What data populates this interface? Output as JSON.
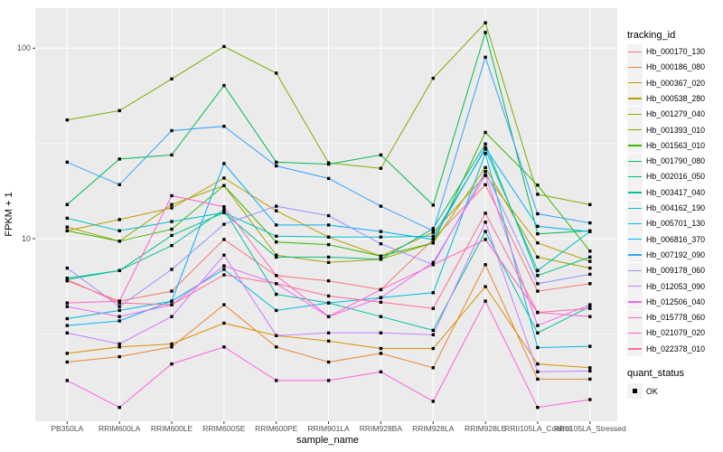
{
  "axes": {
    "y_label": "FPKM + 1",
    "x_label": "sample_name",
    "y_ticks": [
      {
        "label": "100",
        "value": 100
      },
      {
        "label": "10",
        "value": 10
      }
    ]
  },
  "legend": {
    "title": "tracking_id"
  },
  "legend_quant": {
    "title": "quant_status",
    "ok_label": "OK"
  },
  "chart_data": {
    "type": "line",
    "title": "",
    "xlabel": "sample_name",
    "ylabel": "FPKM + 1",
    "y_scale": "log10",
    "ylim": [
      1.05,
      165
    ],
    "grid": true,
    "y_major_gridlines": [
      10,
      100
    ],
    "y_minor_gridlines": [
      3.162,
      31.62
    ],
    "legend_position": "right",
    "point_shape": "black-square",
    "point_status_all": "OK",
    "categories": [
      "PB350LA",
      "RRIM600LA",
      "RRIM600LE",
      "RRIM600SE",
      "RRIM600PE",
      "RRIM901LA",
      "RRIM928BA",
      "RRIM928LA",
      "RRIM928LE",
      "RRII105LA_Control",
      "RRII105LA_Stressed"
    ],
    "series": [
      {
        "name": "Hb_000170_130",
        "color": "#F8766D",
        "values": [
          6.0,
          4.7,
          5.3,
          9.9,
          6.4,
          6.0,
          5.4,
          9.9,
          19.2,
          5.3,
          5.8
        ]
      },
      {
        "name": "Hb_000186_080",
        "color": "#EA8331",
        "values": [
          2.25,
          2.4,
          2.7,
          4.5,
          2.7,
          2.25,
          2.5,
          2.1,
          7.3,
          1.83,
          1.83
        ]
      },
      {
        "name": "Hb_000367_020",
        "color": "#D89000",
        "values": [
          2.5,
          2.7,
          2.8,
          3.6,
          3.1,
          2.9,
          2.65,
          2.65,
          5.6,
          2.2,
          2.1
        ]
      },
      {
        "name": "Hb_000538_280",
        "color": "#C09B00",
        "values": [
          11.0,
          12.6,
          14.5,
          20.8,
          14.0,
          10.2,
          8.1,
          10.8,
          21.5,
          9.5,
          7.6
        ]
      },
      {
        "name": "Hb_001279_040",
        "color": "#A3A500",
        "values": [
          11.5,
          9.7,
          15.1,
          19.0,
          8.2,
          7.5,
          7.8,
          9.5,
          23.6,
          8.0,
          7.0
        ]
      },
      {
        "name": "Hb_001393_010",
        "color": "#7CAE00",
        "values": [
          42,
          47,
          69,
          102,
          74,
          25,
          23.4,
          69.5,
          136,
          17.1,
          15.1
        ]
      },
      {
        "name": "Hb_001563_010",
        "color": "#39B600",
        "values": [
          11.0,
          9.7,
          11.2,
          19.0,
          9.6,
          9.3,
          8.1,
          9.5,
          36.1,
          19.1,
          8.6
        ]
      },
      {
        "name": "Hb_001790_080",
        "color": "#00BB4E",
        "values": [
          15.1,
          26.2,
          27.5,
          63.7,
          25.2,
          24.6,
          27.5,
          15.0,
          121,
          10.6,
          11.0
        ]
      },
      {
        "name": "Hb_002016_050",
        "color": "#00BF7D",
        "values": [
          6.1,
          6.8,
          10.4,
          13.7,
          8.0,
          8.0,
          7.8,
          11.3,
          31.4,
          6.4,
          8.0
        ]
      },
      {
        "name": "Hb_003417_040",
        "color": "#00C1A3",
        "values": [
          6.2,
          6.8,
          9.2,
          14.2,
          5.1,
          4.6,
          3.9,
          3.3,
          10.9,
          3.2,
          4.4
        ]
      },
      {
        "name": "Hb_004162_190",
        "color": "#00BFC4",
        "values": [
          12.8,
          11.0,
          12.3,
          13.7,
          10.3,
          10.2,
          10.2,
          10.3,
          29.5,
          6.8,
          10.9
        ]
      },
      {
        "name": "Hb_005701_130",
        "color": "#00BAE0",
        "values": [
          3.8,
          4.2,
          4.7,
          6.9,
          4.2,
          4.6,
          4.9,
          5.2,
          28.0,
          2.68,
          2.72
        ]
      },
      {
        "name": "Hb_006816_370",
        "color": "#00B0F6",
        "values": [
          3.5,
          3.7,
          4.7,
          24.8,
          11.8,
          11.8,
          10.9,
          9.9,
          30.0,
          11.6,
          10.9
        ]
      },
      {
        "name": "Hb_007192_090",
        "color": "#35A2FF",
        "values": [
          25.2,
          19.2,
          36.9,
          38.9,
          24.1,
          20.7,
          14.8,
          11.0,
          89.6,
          13.5,
          12.1
        ]
      },
      {
        "name": "Hb_009178_060",
        "color": "#9590FF",
        "values": [
          7.0,
          4.4,
          6.9,
          11.9,
          14.8,
          13.2,
          9.4,
          7.3,
          22.5,
          5.8,
          6.5
        ]
      },
      {
        "name": "Hb_012053_090",
        "color": "#C77CFF",
        "values": [
          3.2,
          2.8,
          3.9,
          8.2,
          3.1,
          3.2,
          3.2,
          3.13,
          12.2,
          2.0,
          2.02
        ]
      },
      {
        "name": "Hb_012506_040",
        "color": "#E76BF3",
        "values": [
          4.4,
          3.9,
          4.5,
          7.2,
          5.8,
          3.9,
          4.9,
          7.5,
          21.5,
          3.5,
          4.5
        ]
      },
      {
        "name": "Hb_015778_060",
        "color": "#FA62DB",
        "values": [
          1.8,
          1.3,
          2.2,
          2.7,
          1.8,
          1.8,
          2.0,
          1.4,
          4.7,
          1.3,
          1.43
        ]
      },
      {
        "name": "Hb_021079_020",
        "color": "#FF61CC",
        "values": [
          4.6,
          4.7,
          16.8,
          14.7,
          6.4,
          3.9,
          5.4,
          7.3,
          9.9,
          4.1,
          3.9
        ]
      },
      {
        "name": "Hb_022378_010",
        "color": "#FF6A98",
        "values": [
          6.1,
          4.6,
          4.5,
          6.45,
          5.8,
          5.0,
          4.64,
          4.3,
          13.6,
          4.1,
          4.3
        ]
      }
    ]
  }
}
